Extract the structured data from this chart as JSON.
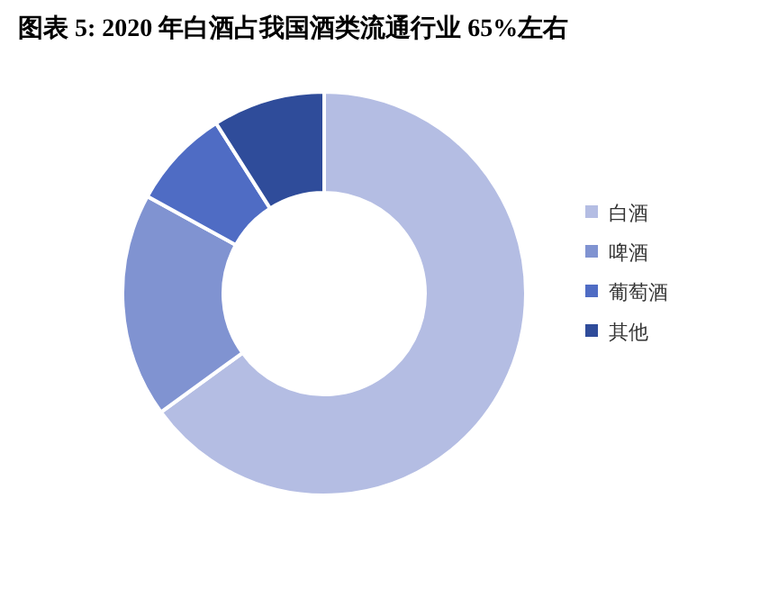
{
  "chart_data": {
    "type": "donut",
    "title": "图表 5:  2020 年白酒占我国酒类流通行业 65%左右",
    "categories": [
      "白酒",
      "啤酒",
      "葡萄酒",
      "其他"
    ],
    "values": [
      65,
      18,
      8,
      9
    ],
    "colors": [
      "#b4bde3",
      "#8093d1",
      "#4f6cc4",
      "#2f4c9a"
    ],
    "legend": "right"
  }
}
